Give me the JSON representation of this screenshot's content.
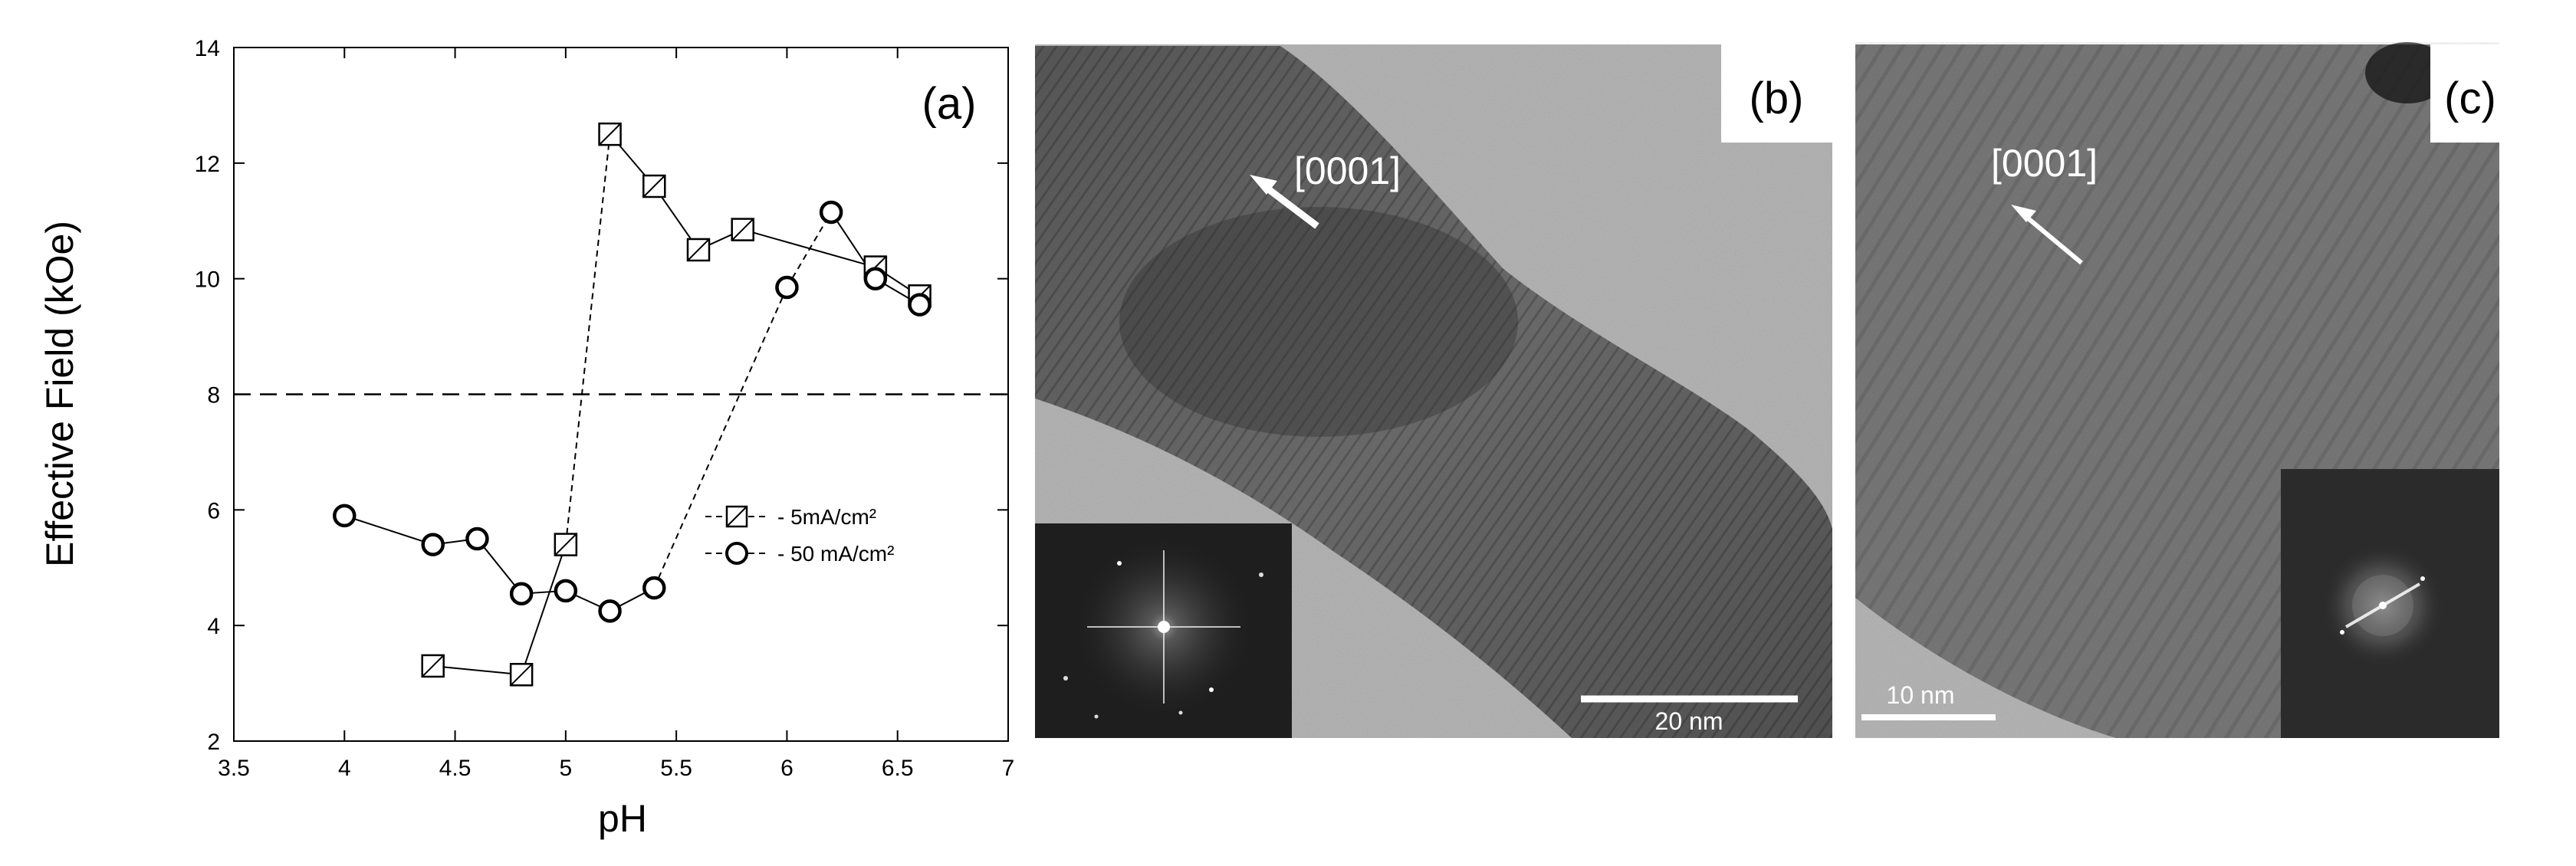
{
  "figure": {
    "panel_a_label": "(a)",
    "panel_b_label": "(b)",
    "panel_c_label": "(c)",
    "panel_b_direction": "[0001]",
    "panel_c_direction": "[0001]",
    "panel_b_scale": "20 nm",
    "panel_c_scale": "10 nm"
  },
  "chart_data": {
    "type": "line",
    "title": "",
    "xlabel": "pH",
    "ylabel": "Effective Field (kOe)",
    "xlim": [
      3.5,
      7
    ],
    "ylim": [
      2,
      14
    ],
    "xticks": [
      3.5,
      4,
      4.5,
      5,
      5.5,
      6,
      6.5,
      7
    ],
    "xtick_labels": [
      "3.5",
      "4",
      "4.5",
      "5",
      "5.5",
      "6",
      "6.5",
      "7"
    ],
    "yticks": [
      2,
      4,
      6,
      8,
      10,
      12,
      14
    ],
    "ytick_labels": [
      "2",
      "4",
      "6",
      "8",
      "10",
      "12",
      "14"
    ],
    "grid": false,
    "legend_position": "right-middle",
    "reference_line": {
      "y": 8,
      "style": "dashed"
    },
    "series": [
      {
        "name": "5mA/cm²",
        "marker": "square",
        "points": [
          {
            "x": 4.4,
            "y": 3.3
          },
          {
            "x": 4.8,
            "y": 3.15
          },
          {
            "x": 5.0,
            "y": 5.4
          },
          {
            "x": 5.2,
            "y": 12.5
          },
          {
            "x": 5.4,
            "y": 11.6
          },
          {
            "x": 5.6,
            "y": 10.5
          },
          {
            "x": 5.8,
            "y": 10.85
          },
          {
            "x": 6.4,
            "y": 10.2
          },
          {
            "x": 6.6,
            "y": 9.7
          }
        ],
        "segment_styles": [
          "solid",
          "solid",
          "dashed",
          "solid",
          "solid",
          "solid",
          "solid",
          "solid"
        ]
      },
      {
        "name": "50 mA/cm²",
        "marker": "circle",
        "points": [
          {
            "x": 4.0,
            "y": 5.9
          },
          {
            "x": 4.4,
            "y": 5.4
          },
          {
            "x": 4.6,
            "y": 5.5
          },
          {
            "x": 4.8,
            "y": 4.55
          },
          {
            "x": 5.0,
            "y": 4.6
          },
          {
            "x": 5.2,
            "y": 4.25
          },
          {
            "x": 5.4,
            "y": 4.65
          },
          {
            "x": 6.0,
            "y": 9.85
          },
          {
            "x": 6.2,
            "y": 11.15
          },
          {
            "x": 6.4,
            "y": 10.0
          },
          {
            "x": 6.6,
            "y": 9.55
          }
        ],
        "segment_styles": [
          "solid",
          "solid",
          "solid",
          "solid",
          "solid",
          "solid",
          "dashed",
          "dashed",
          "solid",
          "solid"
        ]
      }
    ]
  }
}
